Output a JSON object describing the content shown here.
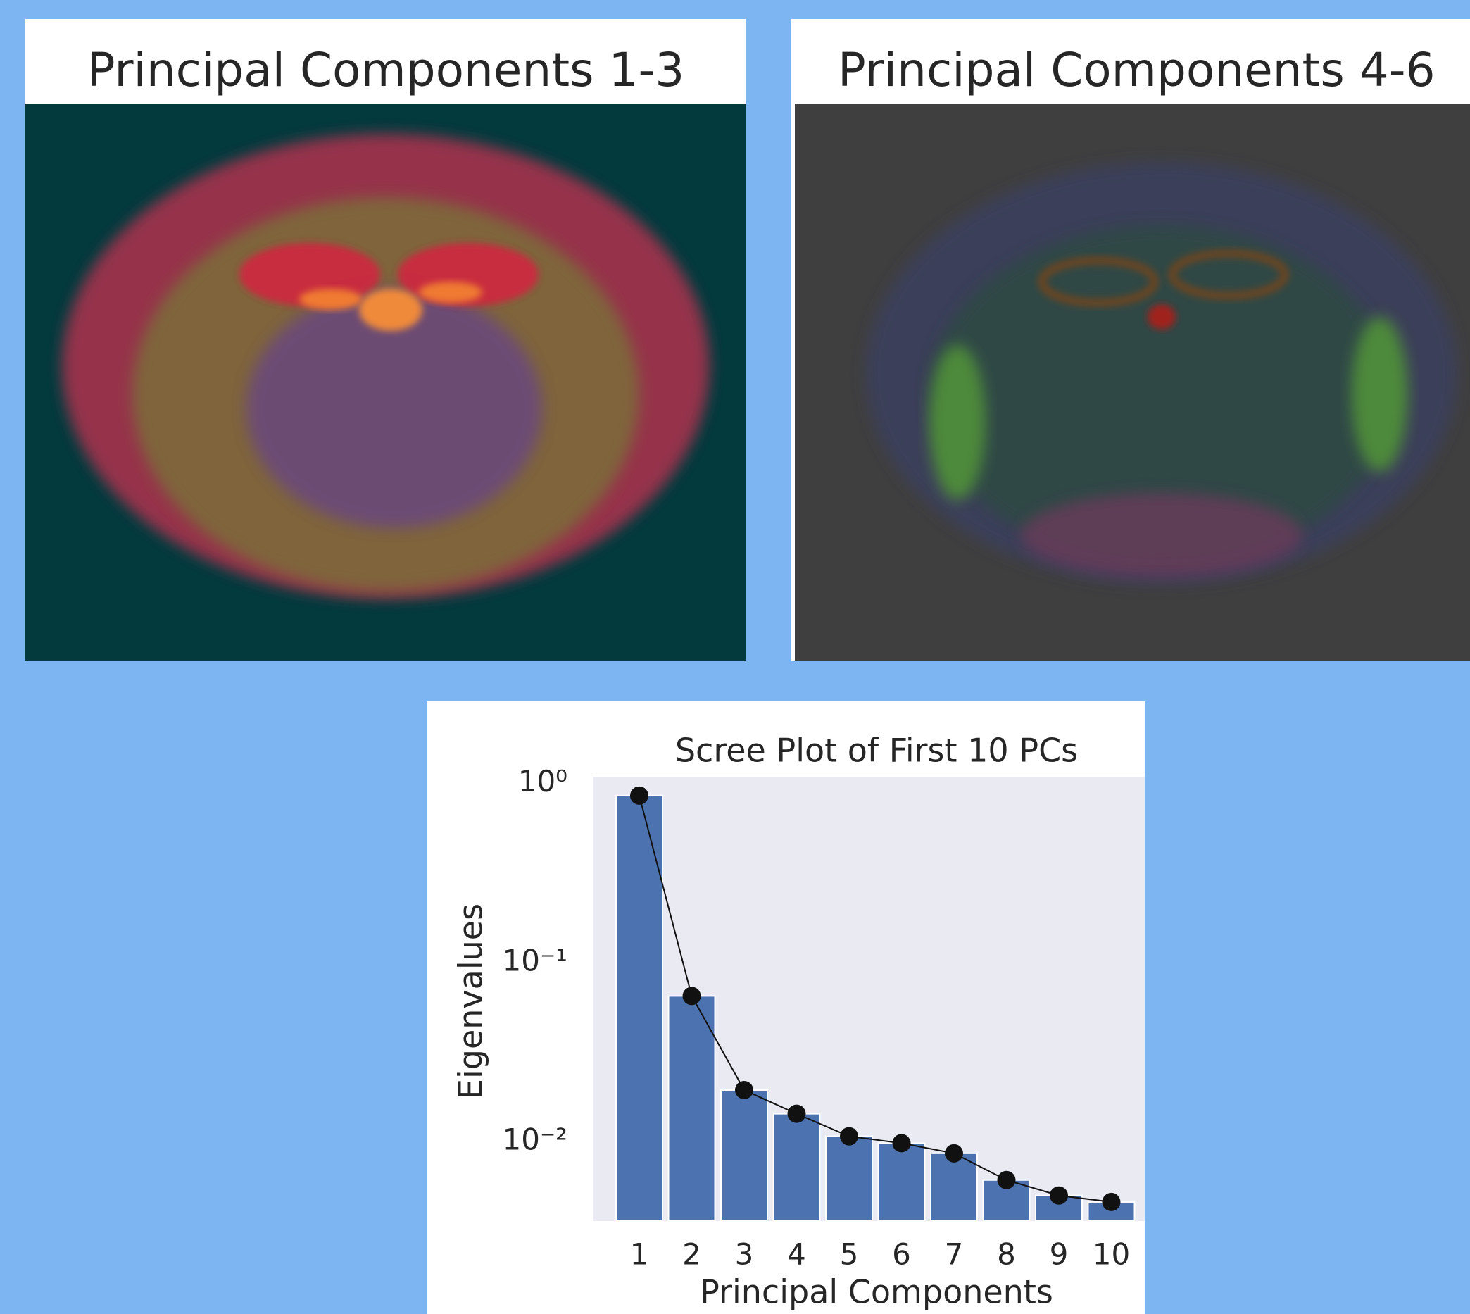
{
  "panels": [
    {
      "title": "Principal Components 1-3"
    },
    {
      "title": "Principal Components 4-6"
    }
  ],
  "chart_data": {
    "type": "bar",
    "title": "Scree Plot of First 10 PCs",
    "x_label": "Principal Components",
    "y_label": "Eigenvalues",
    "categories": [
      "1",
      "2",
      "3",
      "4",
      "5",
      "6",
      "7",
      "8",
      "9",
      "10"
    ],
    "values": [
      0.855,
      0.065,
      0.0194,
      0.0143,
      0.0107,
      0.0098,
      0.0086,
      0.0061,
      0.005,
      0.0046
    ],
    "color": "#4c72b0",
    "marker_color": "#111111",
    "ylog": true,
    "ylim": [
      0.0036,
      1.09
    ],
    "yticks": [
      {
        "value": 1,
        "label": "10⁰"
      },
      {
        "value": 0.1,
        "label": "10⁻¹"
      },
      {
        "value": 0.01,
        "label": "10⁻²"
      }
    ],
    "grid": false
  }
}
